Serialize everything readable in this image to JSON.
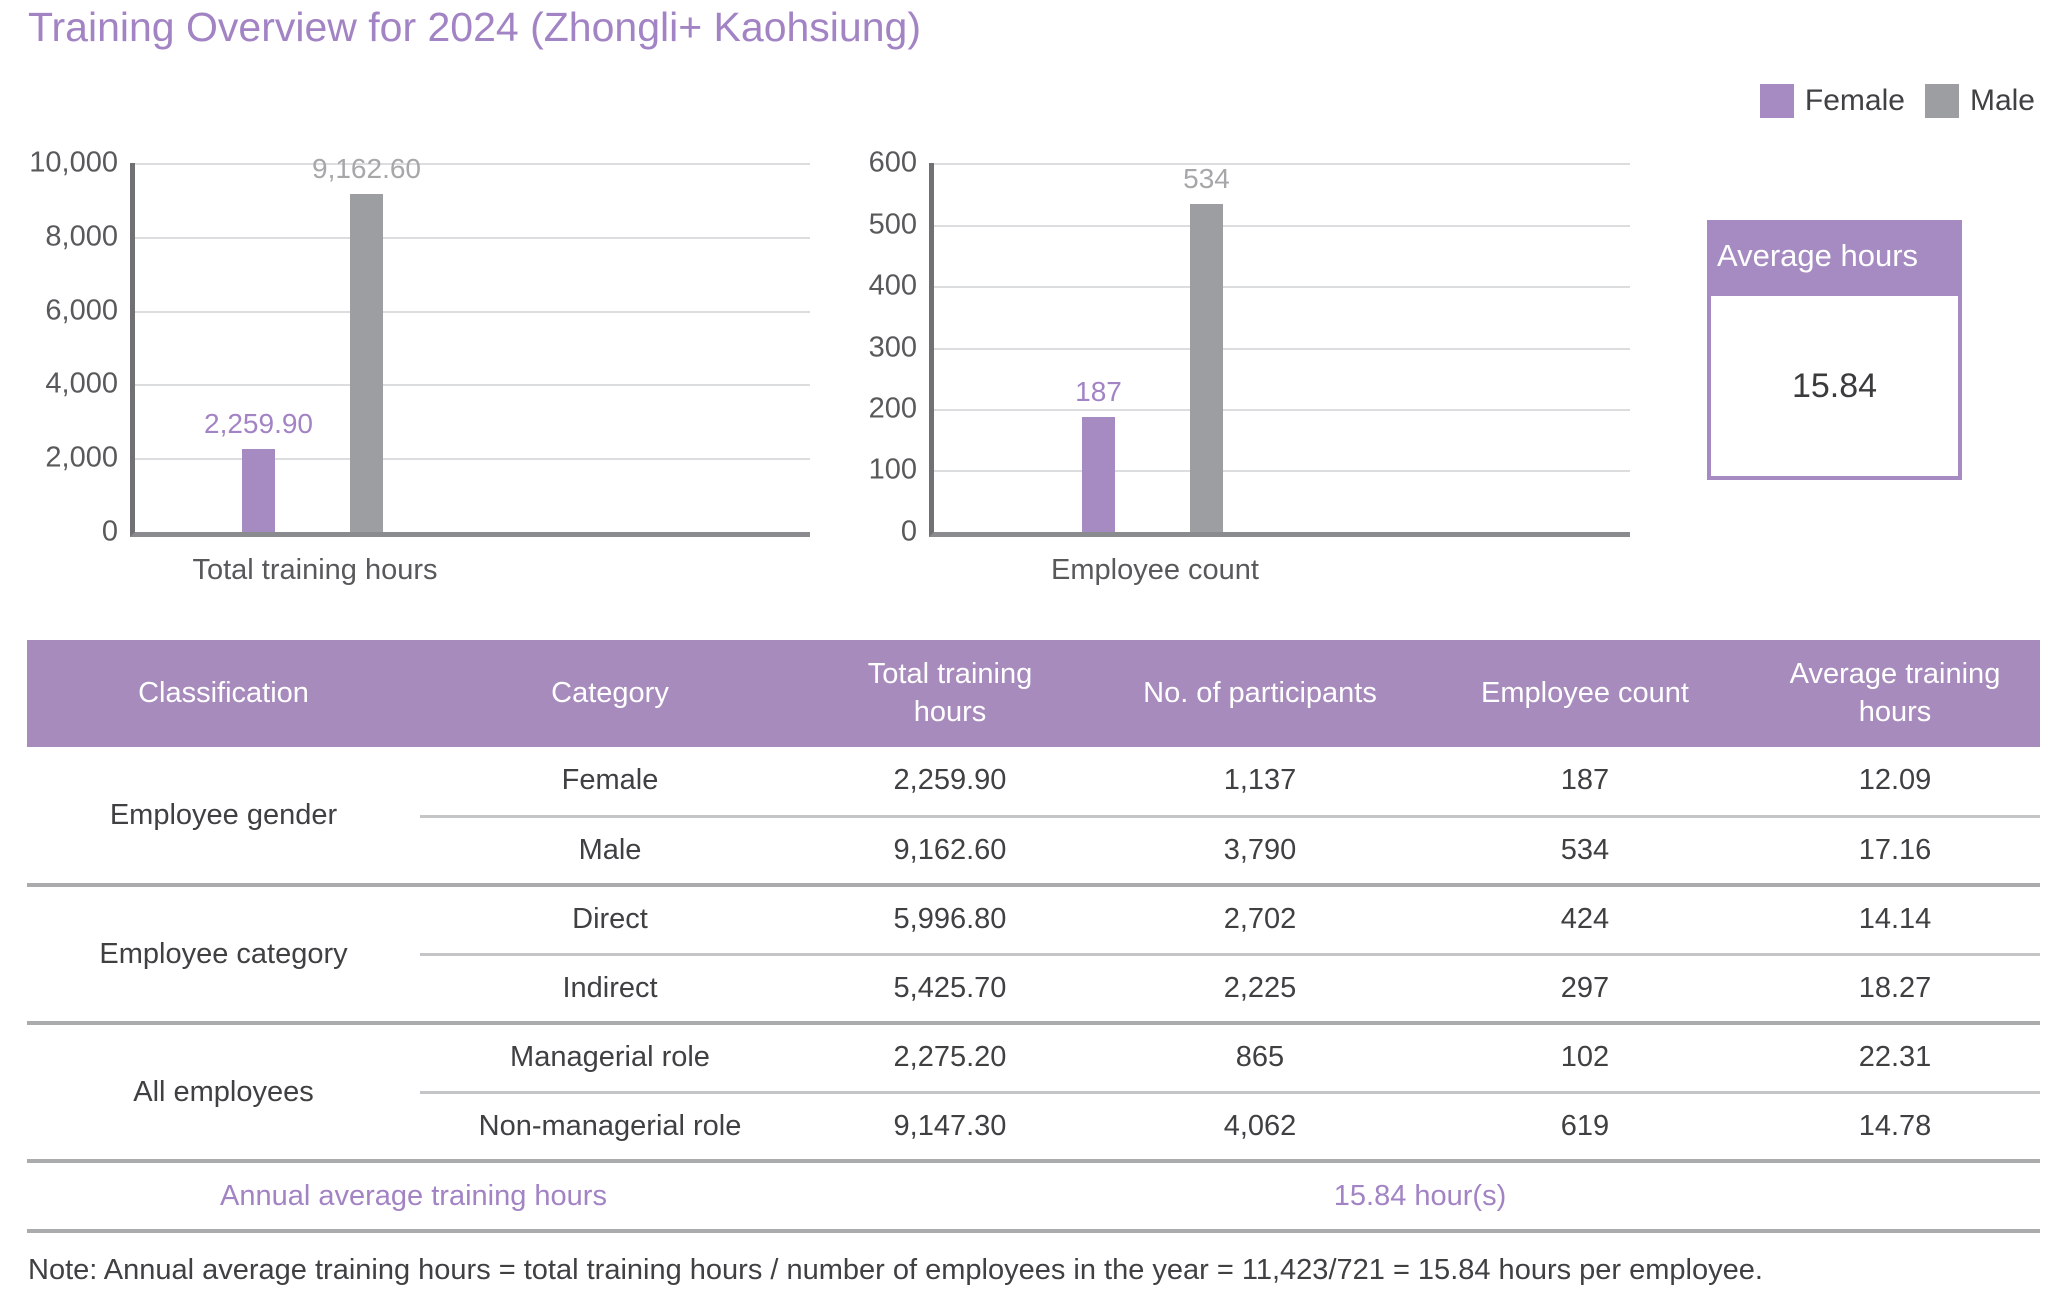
{
  "title": "Training Overview for 2024 (Zhongli+ Kaohsiung)",
  "legend": {
    "items": [
      {
        "label": "Female",
        "color": "#a58bc1"
      },
      {
        "label": "Male",
        "color": "#9d9ea1"
      }
    ],
    "position": "top-right"
  },
  "chart_data": [
    {
      "type": "bar",
      "categories": [
        "Total training hours"
      ],
      "series": [
        {
          "name": "Female",
          "values": [
            2259.9
          ]
        },
        {
          "name": "Male",
          "values": [
            9162.6
          ]
        }
      ],
      "value_labels": [
        "2,259.90",
        "9,162.60"
      ],
      "title": "",
      "xlabel": "Total training hours",
      "ylabel": "",
      "ylim": [
        0,
        10000
      ],
      "yticks": [
        "0",
        "2,000",
        "4,000",
        "6,000",
        "8,000",
        "10,000"
      ],
      "grid": true,
      "legend_position": "top-right"
    },
    {
      "type": "bar",
      "categories": [
        "Employee count"
      ],
      "series": [
        {
          "name": "Female",
          "values": [
            187
          ]
        },
        {
          "name": "Male",
          "values": [
            534
          ]
        }
      ],
      "value_labels": [
        "187",
        "534"
      ],
      "title": "",
      "xlabel": "Employee count",
      "ylabel": "",
      "ylim": [
        0,
        600
      ],
      "yticks": [
        "0",
        "100",
        "200",
        "300",
        "400",
        "500",
        "600"
      ],
      "grid": true,
      "legend_position": "top-right"
    }
  ],
  "average_box": {
    "title": "Average hours",
    "value": "15.84"
  },
  "table": {
    "headers": [
      "Classification",
      "Category",
      "Total training hours",
      "No. of participants",
      "Employee count",
      "Average training hours"
    ],
    "groups": [
      {
        "classification": "Employee gender",
        "rows": [
          {
            "category": "Female",
            "total_hours": "2,259.90",
            "participants": "1,137",
            "employees": "187",
            "avg_hours": "12.09"
          },
          {
            "category": "Male",
            "total_hours": "9,162.60",
            "participants": "3,790",
            "employees": "534",
            "avg_hours": "17.16"
          }
        ]
      },
      {
        "classification": "Employee category",
        "rows": [
          {
            "category": "Direct",
            "total_hours": "5,996.80",
            "participants": "2,702",
            "employees": "424",
            "avg_hours": "14.14"
          },
          {
            "category": "Indirect",
            "total_hours": "5,425.70",
            "participants": "2,225",
            "employees": "297",
            "avg_hours": "18.27"
          }
        ]
      },
      {
        "classification": "All employees",
        "rows": [
          {
            "category": "Managerial role",
            "total_hours": "2,275.20",
            "participants": "865",
            "employees": "102",
            "avg_hours": "22.31"
          },
          {
            "category": "Non-managerial role",
            "total_hours": "9,147.30",
            "participants": "4,062",
            "employees": "619",
            "avg_hours": "14.78"
          }
        ]
      }
    ],
    "footer": {
      "label": "Annual average training hours",
      "value": "15.84 hour(s)"
    }
  },
  "note": "Note: Annual average training hours = total training hours / number of employees in the year = 11,423/721 = 15.84 hours per employee.",
  "colors": {
    "purple_fill": "#a58bc1",
    "purple_text": "#a283c4",
    "gray_fill": "#9d9ea1",
    "gray_label": "#a6a7a9",
    "axis_text": "#58595b",
    "dark_text": "#3f4042",
    "grid_line": "#dcddde",
    "axis_line": "#707174",
    "divider_light": "#c3c5c7",
    "divider_dark": "#a9abad"
  }
}
